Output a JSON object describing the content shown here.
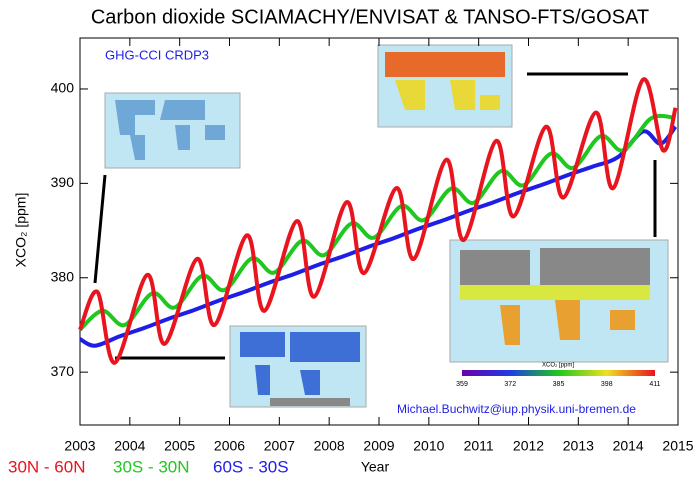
{
  "chart_data": {
    "type": "line",
    "title": "Carbon dioxide SCIAMACHY/ENVISAT & TANSO-FTS/GOSAT",
    "subtitle": "GHG-CCI CRDP3",
    "x_label": "Year",
    "y_label": "XCO₂ [ppm]",
    "annotation": "Michael.Buchwitz@iup.physik.uni-bremen.de",
    "xlim": [
      2003,
      2015
    ],
    "xticks": [
      2003,
      2004,
      2005,
      2006,
      2007,
      2008,
      2009,
      2010,
      2011,
      2012,
      2013,
      2014,
      2015
    ],
    "ylim": [
      364.4,
      405.4
    ],
    "yticks": [
      370,
      380,
      390,
      400
    ],
    "colorbar": {
      "label": "XCO₂ [ppm]",
      "ticks": [
        359,
        372,
        385,
        398,
        411
      ]
    },
    "series": [
      {
        "name": "30N - 60N",
        "color": "#e8141e",
        "x": [
          2003.0,
          2003.35,
          2003.7,
          2004.35,
          2004.7,
          2005.35,
          2005.7,
          2006.35,
          2006.7,
          2007.35,
          2007.7,
          2008.35,
          2008.7,
          2009.35,
          2009.7,
          2010.35,
          2010.7,
          2011.35,
          2011.7,
          2012.35,
          2012.7,
          2013.35,
          2013.7,
          2014.3,
          2014.7,
          2014.95
        ],
        "values": [
          374.5,
          378.5,
          371,
          380.3,
          373,
          382,
          375,
          384.5,
          376.5,
          386,
          378,
          388,
          380.5,
          389.5,
          382,
          392.5,
          384,
          394.5,
          386.5,
          396,
          388.5,
          397.5,
          389.5,
          401,
          393.5,
          398
        ]
      },
      {
        "name": "30S - 30N",
        "color": "#1ec81e",
        "x": [
          2003.0,
          2003.45,
          2003.9,
          2004.45,
          2004.9,
          2005.45,
          2005.9,
          2006.45,
          2006.9,
          2007.45,
          2007.9,
          2008.45,
          2008.9,
          2009.45,
          2009.9,
          2010.45,
          2010.9,
          2011.45,
          2011.9,
          2012.45,
          2012.9,
          2013.45,
          2013.9,
          2014.45,
          2014.9
        ],
        "values": [
          374.5,
          376.5,
          375,
          378.35,
          376.85,
          380.2,
          378.7,
          382.05,
          380.55,
          383.9,
          382.4,
          385.75,
          384.25,
          387.6,
          386.1,
          389.45,
          387.95,
          391.3,
          389.8,
          393.15,
          391.65,
          395,
          393.5,
          396.85,
          397
        ]
      },
      {
        "name": "60S - 30S",
        "color": "#1e1ee6",
        "x": [
          2003.0,
          2003.3,
          2003.8,
          2004.3,
          2004.8,
          2005.3,
          2005.8,
          2006.3,
          2006.8,
          2007.3,
          2007.8,
          2008.3,
          2008.8,
          2009.3,
          2009.8,
          2010.3,
          2010.8,
          2011.3,
          2011.8,
          2012.3,
          2012.8,
          2013.3,
          2013.8,
          2014.3,
          2014.65,
          2014.95
        ],
        "values": [
          373.5,
          372.8,
          373.8,
          374.7,
          375.7,
          376.6,
          377.6,
          378.5,
          379.5,
          380.4,
          381.4,
          382.3,
          383.3,
          384.2,
          385.2,
          386.1,
          387.1,
          388.0,
          389.0,
          389.9,
          390.9,
          391.8,
          392.8,
          395.5,
          394.2,
          396
        ]
      }
    ]
  }
}
